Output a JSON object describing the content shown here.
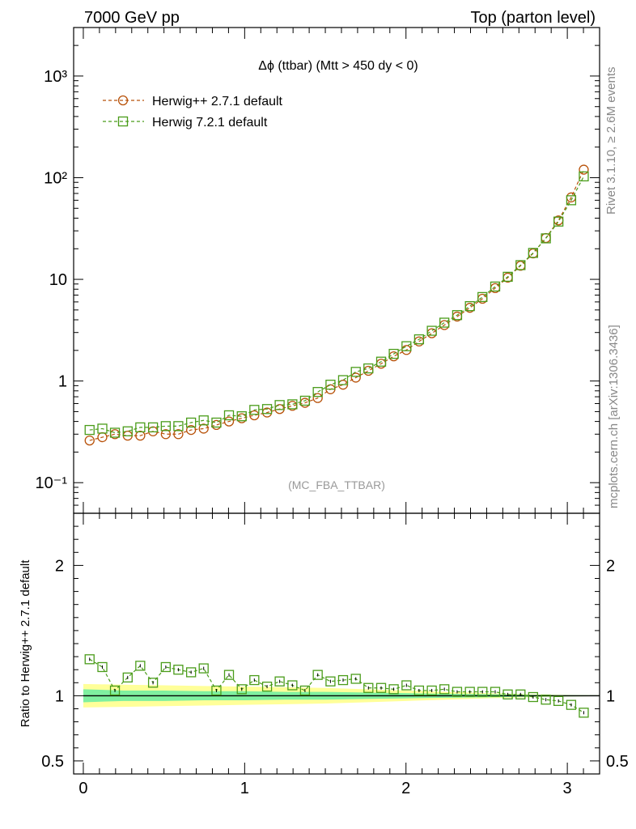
{
  "header": {
    "left": "7000 GeV pp",
    "right": "Top (parton level)"
  },
  "side_labels": {
    "rivet": "Rivet 3.1.10, ≥ 2.6M events",
    "mcplots": "mcplots.cern.ch [arXiv:1306.3436]"
  },
  "analysis_tag": "(MC_FBA_TTBAR)",
  "colors": {
    "herwigpp": "#b8520a",
    "herwig7": "#4a9c1a",
    "band_inner": "#7ff0a0",
    "band_outer": "#ffff99",
    "axis": "#000000"
  },
  "chart_data": [
    {
      "type": "line",
      "title": "Δϕ (ttbar) (Mtt > 450 dy < 0)",
      "xlabel": "",
      "ylabel": "",
      "xlim": [
        -0.06,
        3.2
      ],
      "ylim": [
        0.05,
        3000
      ],
      "yscale": "log",
      "y_tick_labels": [
        "10⁻¹",
        "1",
        "10",
        "10²",
        "10³"
      ],
      "x": [
        0.039,
        0.118,
        0.196,
        0.275,
        0.353,
        0.432,
        0.511,
        0.589,
        0.668,
        0.746,
        0.825,
        0.903,
        0.982,
        1.06,
        1.139,
        1.217,
        1.296,
        1.374,
        1.453,
        1.532,
        1.61,
        1.689,
        1.767,
        1.846,
        1.924,
        2.003,
        2.081,
        2.16,
        2.238,
        2.317,
        2.396,
        2.474,
        2.553,
        2.631,
        2.71,
        2.788,
        2.867,
        2.945,
        3.024,
        3.102
      ],
      "series": [
        {
          "name": "Herwig++ 2.7.1 default",
          "marker": "circle",
          "values": [
            0.26,
            0.28,
            0.3,
            0.29,
            0.29,
            0.32,
            0.3,
            0.3,
            0.33,
            0.34,
            0.37,
            0.4,
            0.43,
            0.46,
            0.49,
            0.53,
            0.57,
            0.61,
            0.68,
            0.83,
            0.92,
            1.08,
            1.26,
            1.48,
            1.75,
            2.02,
            2.45,
            2.95,
            3.55,
            4.3,
            5.25,
            6.45,
            8.2,
            10.4,
            13.6,
            18.0,
            25.5,
            38.0,
            64.0,
            120.0
          ]
        },
        {
          "name": "Herwig 7.2.1 default",
          "marker": "square",
          "values": [
            0.33,
            0.34,
            0.31,
            0.32,
            0.35,
            0.35,
            0.36,
            0.36,
            0.39,
            0.41,
            0.39,
            0.46,
            0.45,
            0.52,
            0.53,
            0.58,
            0.59,
            0.64,
            0.78,
            0.92,
            1.02,
            1.23,
            1.33,
            1.55,
            1.85,
            2.2,
            2.57,
            3.12,
            3.75,
            4.45,
            5.45,
            6.7,
            8.5,
            10.6,
            13.8,
            18.2,
            25.3,
            37.0,
            60.0,
            103.0
          ]
        }
      ]
    },
    {
      "type": "line",
      "title": "",
      "xlabel": "",
      "ylabel": "Ratio to Herwig++ 2.7.1 default",
      "xlim": [
        -0.06,
        3.2
      ],
      "ylim": [
        0.4,
        2.4
      ],
      "x_tick_labels": [
        "0",
        "1",
        "2",
        "3"
      ],
      "y_tick_labels": [
        "0.5",
        "1",
        "2"
      ],
      "x": [
        0.039,
        0.118,
        0.196,
        0.275,
        0.353,
        0.432,
        0.511,
        0.589,
        0.668,
        0.746,
        0.825,
        0.903,
        0.982,
        1.06,
        1.139,
        1.217,
        1.296,
        1.374,
        1.453,
        1.532,
        1.61,
        1.689,
        1.767,
        1.846,
        1.924,
        2.003,
        2.081,
        2.16,
        2.238,
        2.317,
        2.396,
        2.474,
        2.553,
        2.631,
        2.71,
        2.788,
        2.867,
        2.945,
        3.024,
        3.102
      ],
      "series": [
        {
          "name": "Herwig 7.2.1 default",
          "marker": "square",
          "values": [
            1.28,
            1.22,
            1.04,
            1.14,
            1.23,
            1.1,
            1.22,
            1.2,
            1.18,
            1.21,
            1.04,
            1.16,
            1.05,
            1.12,
            1.07,
            1.11,
            1.08,
            1.04,
            1.16,
            1.11,
            1.12,
            1.13,
            1.06,
            1.06,
            1.05,
            1.08,
            1.04,
            1.04,
            1.05,
            1.03,
            1.03,
            1.03,
            1.03,
            1.01,
            1.01,
            0.99,
            0.97,
            0.96,
            0.93,
            0.87
          ]
        }
      ],
      "reference_band": {
        "inner_halfwidth": [
          0.05,
          0.04,
          0.04,
          0.035,
          0.035,
          0.03,
          0.03,
          0.025,
          0.02,
          0.015,
          0.012,
          0.008,
          0.005,
          0.003
        ],
        "outer_halfwidth": [
          0.09,
          0.085,
          0.08,
          0.075,
          0.07,
          0.065,
          0.06,
          0.05,
          0.04,
          0.03,
          0.02,
          0.012,
          0.006,
          0.003
        ],
        "x": [
          0.0,
          0.25,
          0.5,
          0.75,
          1.0,
          1.25,
          1.5,
          1.75,
          2.0,
          2.25,
          2.5,
          2.75,
          3.0,
          3.2
        ]
      }
    }
  ]
}
